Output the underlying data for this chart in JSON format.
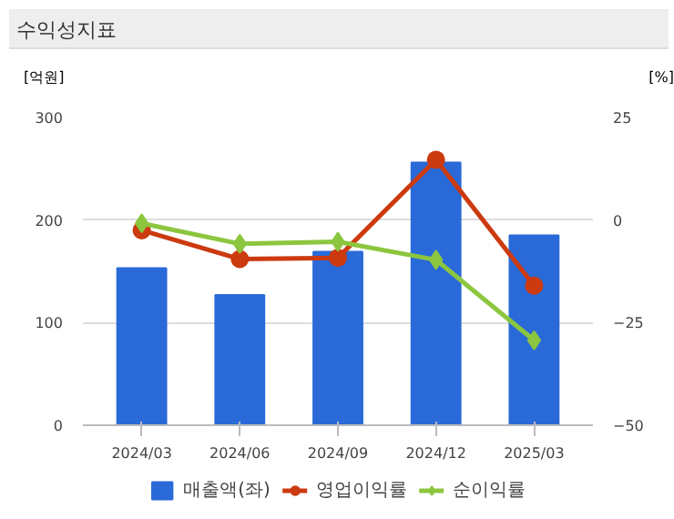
{
  "chart_data": {
    "type": "bar",
    "title": "수익성지표",
    "ylabel": "[억원]",
    "y2label": "[%]",
    "categories": [
      "2024/03",
      "2024/06",
      "2024/09",
      "2024/12",
      "2025/03"
    ],
    "series": [
      {
        "name": "매출액(좌)",
        "color": "#2a6ad8",
        "values": [
          153,
          127,
          169,
          256,
          185
        ]
      },
      {
        "name": "영업이익률",
        "type": "line",
        "axis": "y2",
        "marker": "circle",
        "color": "#cc3a10",
        "values": [
          -2.5,
          -9.5,
          -9.2,
          14.7,
          -16.0
        ]
      },
      {
        "name": "순이익률",
        "type": "line",
        "axis": "y2",
        "marker": "diamond",
        "color": "#8cc63f",
        "values": [
          -0.8,
          -5.8,
          -5.3,
          -9.7,
          -29.3
        ]
      }
    ],
    "ylim": [
      0,
      300
    ],
    "yticks": [
      0,
      100,
      200,
      300
    ],
    "y2lim": [
      -50,
      25
    ],
    "y2ticks": [
      -50,
      -25,
      0,
      25
    ],
    "grid": "y",
    "legend": "bottom"
  }
}
